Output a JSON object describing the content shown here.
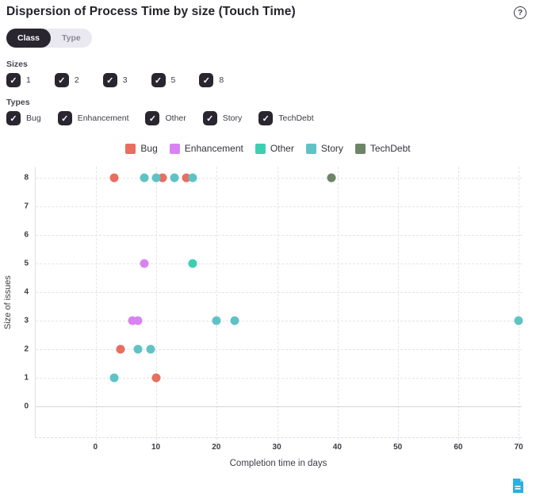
{
  "header": {
    "title": "Dispersion of Process Time by size (Touch Time)",
    "help_icon": "circled-question-mark",
    "help_glyph": "?"
  },
  "toggle": {
    "options": [
      {
        "label": "Class",
        "active": true
      },
      {
        "label": "Type",
        "active": false
      }
    ]
  },
  "filters": {
    "sizes_label": "Sizes",
    "sizes": [
      {
        "label": "1",
        "checked": true
      },
      {
        "label": "2",
        "checked": true
      },
      {
        "label": "3",
        "checked": true
      },
      {
        "label": "5",
        "checked": true
      },
      {
        "label": "8",
        "checked": true
      }
    ],
    "types_label": "Types",
    "types": [
      {
        "label": "Bug",
        "checked": true
      },
      {
        "label": "Enhancement",
        "checked": true
      },
      {
        "label": "Other",
        "checked": true
      },
      {
        "label": "Story",
        "checked": true
      },
      {
        "label": "TechDebt",
        "checked": true
      }
    ],
    "check_glyph": "✓"
  },
  "colors": {
    "accent_dark": "#29262f",
    "export_icon": "#29b0e0"
  },
  "chart_data": {
    "type": "scatter",
    "xlabel": "Completion time in days",
    "ylabel": "Size of issues",
    "x_ticks": [
      0,
      10,
      20,
      30,
      40,
      50,
      60,
      70
    ],
    "y_ticks": [
      0,
      1,
      2,
      3,
      4,
      5,
      6,
      7,
      8
    ],
    "xlim": [
      -10,
      70.5
    ],
    "ylim": [
      -1.1,
      8.4
    ],
    "grid": "dashed",
    "legend_position": "top-center",
    "series": [
      {
        "name": "Bug",
        "color": "#e96e60",
        "points": [
          [
            3,
            8
          ],
          [
            11,
            8
          ],
          [
            15,
            8
          ],
          [
            4,
            2
          ],
          [
            10,
            1
          ]
        ]
      },
      {
        "name": "Enhancement",
        "color": "#d983f2",
        "points": [
          [
            8,
            5
          ],
          [
            6,
            3
          ],
          [
            7,
            3
          ]
        ]
      },
      {
        "name": "Other",
        "color": "#3dcfb2",
        "points": [
          [
            16,
            5
          ]
        ]
      },
      {
        "name": "Story",
        "color": "#5fc3c6",
        "points": [
          [
            8,
            8
          ],
          [
            10,
            8
          ],
          [
            13,
            8
          ],
          [
            16,
            8
          ],
          [
            20,
            3
          ],
          [
            23,
            3
          ],
          [
            70,
            3
          ],
          [
            7,
            2
          ],
          [
            9,
            2
          ],
          [
            3,
            1
          ]
        ]
      },
      {
        "name": "TechDebt",
        "color": "#6e8468",
        "points": [
          [
            39,
            8
          ]
        ]
      }
    ]
  }
}
